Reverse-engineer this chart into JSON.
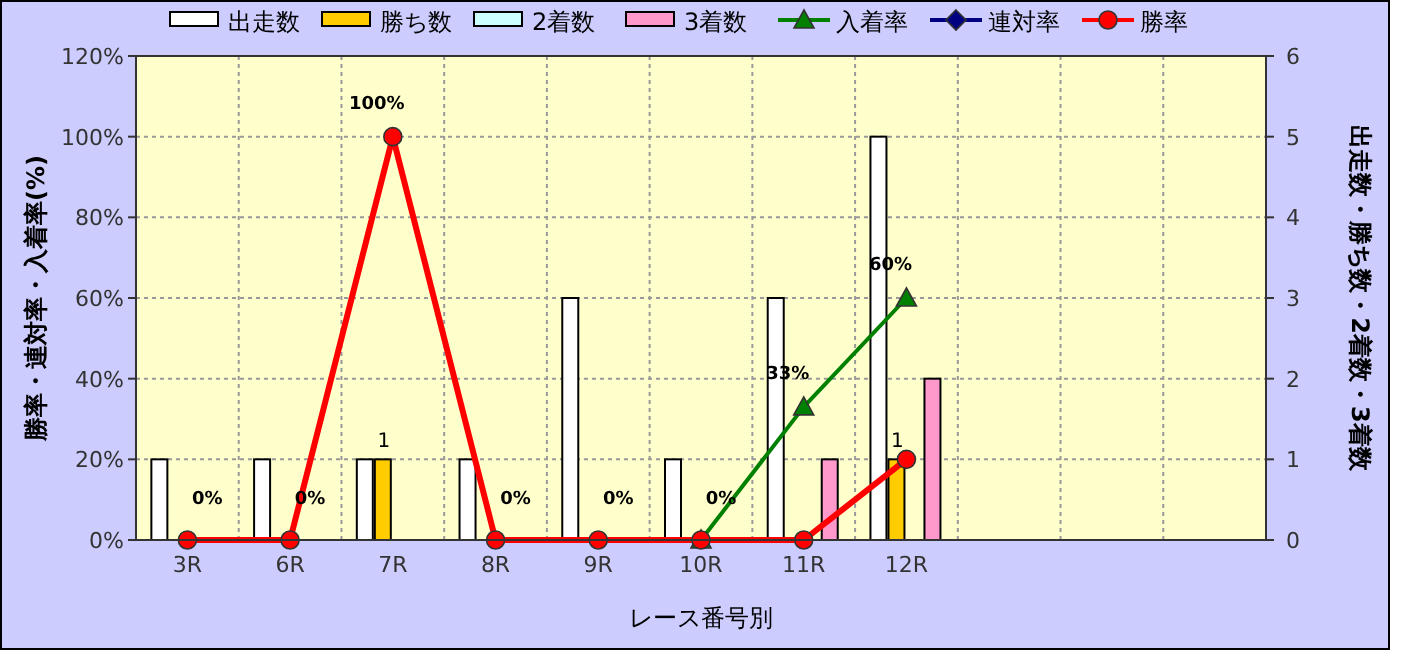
{
  "chart_data": {
    "type": "bar",
    "categories": [
      "3R",
      "6R",
      "7R",
      "8R",
      "9R",
      "10R",
      "11R",
      "12R",
      null,
      null,
      null
    ],
    "xlabel": "レース番号別",
    "ylabel": "勝率・連対率・入着率(%)",
    "y2label": "出走数・勝ち数・2着数・3着数",
    "ylim": [
      0,
      120
    ],
    "yticks": [
      {
        "value": 0,
        "label": "0%"
      },
      {
        "value": 20,
        "label": "20%"
      },
      {
        "value": 40,
        "label": "40%"
      },
      {
        "value": 60,
        "label": "60%"
      },
      {
        "value": 80,
        "label": "80%"
      },
      {
        "value": 100,
        "label": "100%"
      },
      {
        "value": 120,
        "label": "120%"
      }
    ],
    "y2lim": [
      0,
      6
    ],
    "y2ticks": [
      0,
      1,
      2,
      3,
      4,
      5,
      6
    ],
    "grid": true,
    "legend": "top",
    "series": [
      {
        "name": "出走数",
        "axis": "y2",
        "color": "#ffffff",
        "values": [
          1,
          1,
          1,
          1,
          3,
          1,
          3,
          5,
          null,
          null,
          null
        ]
      },
      {
        "name": "勝ち数",
        "axis": "y2",
        "color": "#ffcc00",
        "values": [
          0,
          0,
          1,
          0,
          0,
          0,
          0,
          1,
          null,
          null,
          null
        ],
        "value_labels": [
          null,
          null,
          "1",
          null,
          null,
          null,
          null,
          "1",
          null,
          null,
          null
        ]
      },
      {
        "name": "2着数",
        "axis": "y2",
        "color": "#ccffff",
        "values": [
          0,
          0,
          0,
          0,
          0,
          0,
          0,
          0,
          null,
          null,
          null
        ]
      },
      {
        "name": "3着数",
        "axis": "y2",
        "color": "#ff99cc",
        "values": [
          0,
          0,
          0,
          0,
          0,
          0,
          1,
          2,
          null,
          null,
          null
        ]
      },
      {
        "name": "入着率",
        "type": "line",
        "color": "#008000",
        "marker": "triangle",
        "values": [
          null,
          null,
          null,
          null,
          null,
          0,
          33,
          60,
          null,
          null,
          null
        ],
        "value_labels": [
          null,
          null,
          null,
          null,
          null,
          null,
          "33%",
          "60%",
          null,
          null,
          null
        ]
      },
      {
        "name": "連対率",
        "type": "line",
        "color": "#000080",
        "marker": "diamond",
        "values": [
          null,
          null,
          null,
          null,
          null,
          null,
          null,
          null,
          null,
          null,
          null
        ]
      },
      {
        "name": "勝率",
        "type": "line",
        "color": "#ff0000",
        "marker": "circle",
        "values": [
          0,
          0,
          100,
          0,
          0,
          0,
          0,
          20,
          null,
          null,
          null
        ],
        "value_labels": [
          "0%",
          "0%",
          "100%",
          "0%",
          "0%",
          "0%",
          null,
          null,
          null,
          null,
          null
        ]
      }
    ]
  }
}
